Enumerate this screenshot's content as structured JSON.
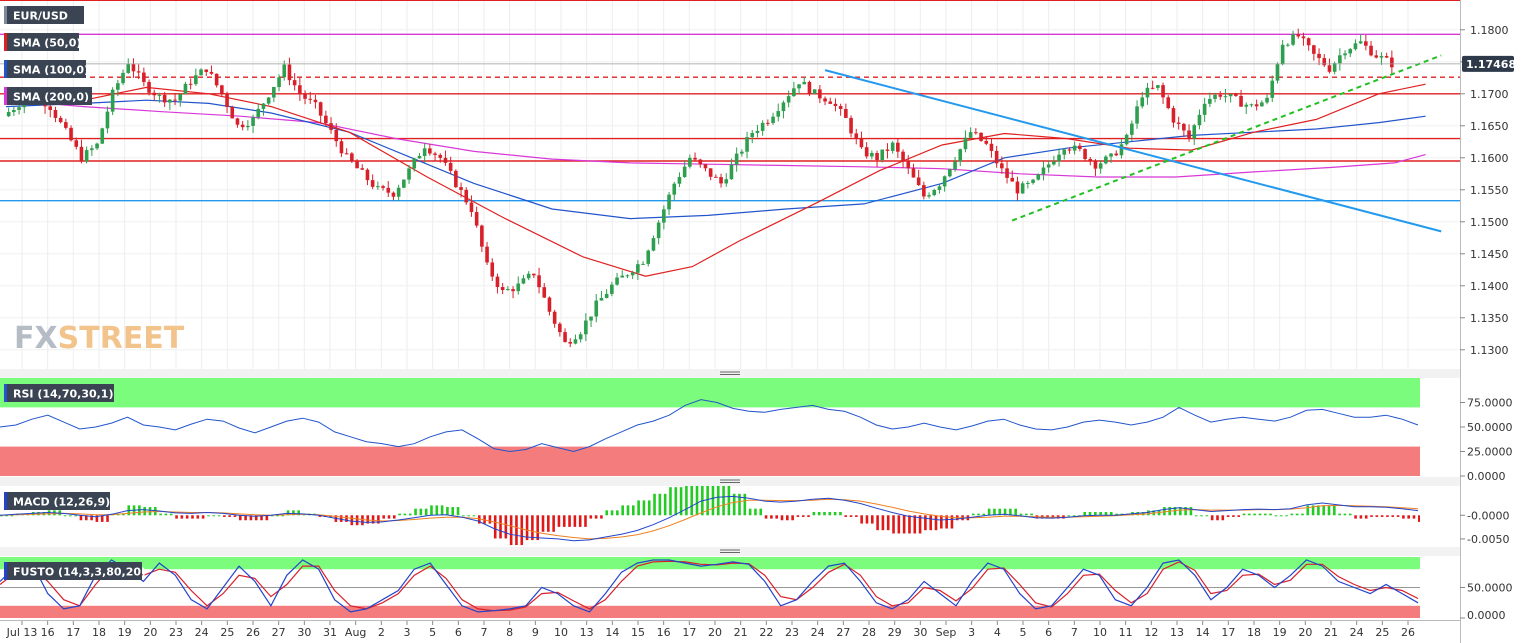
{
  "symbol": "EUR/USD",
  "watermark": {
    "fx": "FX",
    "street": "STREET"
  },
  "indicators": {
    "sma50": "SMA (50,0)",
    "sma100": "SMA (100,0)",
    "sma200": "SMA (200,0)",
    "rsi": "RSI (14,70,30,1)",
    "macd": "MACD (12,26,9)",
    "fusto": "FUSTO (14,3,3,80,20)"
  },
  "colors": {
    "up": "#2e9e4f",
    "down": "#d8202a",
    "sma50": "#e02020",
    "sma100": "#2255cc",
    "sma200": "#d838d8",
    "trend": "#2299ee",
    "support": "#22c022",
    "overbought": "#7cfc7c",
    "oversold": "#f47c7c"
  },
  "chart_data": [
    {
      "type": "candlestick",
      "pane": "price",
      "ylim": [
        1.127,
        1.1845
      ],
      "y_ticks": [
        "1.1800",
        "1.1750",
        "1.1700",
        "1.1650",
        "1.1600",
        "1.1550",
        "1.1500",
        "1.1450",
        "1.1400",
        "1.1350",
        "1.1300"
      ],
      "x_labels": [
        "Jul 13",
        "16",
        "17",
        "18",
        "19",
        "20",
        "23",
        "24",
        "25",
        "26",
        "27",
        "30",
        "31",
        "Aug",
        "2",
        "3",
        "5",
        "6",
        "7",
        "8",
        "9",
        "10",
        "13",
        "14",
        "15",
        "16",
        "17",
        "20",
        "21",
        "22",
        "23",
        "24",
        "27",
        "28",
        "29",
        "30",
        "Sep",
        "3",
        "4",
        "5",
        "6",
        "7",
        "10",
        "11",
        "12",
        "13",
        "14",
        "17",
        "18",
        "19",
        "20",
        "21",
        "24",
        "25",
        "26"
      ],
      "last_price": "1.17468",
      "close_path": [
        1.1665,
        1.1685,
        1.17,
        1.168,
        1.164,
        1.16,
        1.162,
        1.17,
        1.175,
        1.1715,
        1.1695,
        1.169,
        1.172,
        1.174,
        1.17,
        1.165,
        1.166,
        1.17,
        1.174,
        1.17,
        1.168,
        1.164,
        1.16,
        1.1575,
        1.155,
        1.1545,
        1.158,
        1.162,
        1.16,
        1.156,
        1.152,
        1.143,
        1.139,
        1.14,
        1.142,
        1.136,
        1.131,
        1.133,
        1.137,
        1.14,
        1.142,
        1.144,
        1.15,
        1.156,
        1.16,
        1.158,
        1.156,
        1.16,
        1.164,
        1.166,
        1.169,
        1.172,
        1.17,
        1.169,
        1.166,
        1.161,
        1.16,
        1.162,
        1.158,
        1.154,
        1.156,
        1.16,
        1.164,
        1.162,
        1.158,
        1.155,
        1.156,
        1.159,
        1.162,
        1.161,
        1.159,
        1.16,
        1.163,
        1.17,
        1.171,
        1.166,
        1.163,
        1.169,
        1.17,
        1.169,
        1.168,
        1.169,
        1.178,
        1.179,
        1.176,
        1.174,
        1.177,
        1.178,
        1.176,
        1.1747
      ],
      "sma50": [
        [
          0,
          1.17
        ],
        [
          5,
          1.169
        ],
        [
          9,
          1.171
        ],
        [
          13,
          1.17
        ],
        [
          17,
          1.168
        ],
        [
          22,
          1.164
        ],
        [
          27,
          1.157
        ],
        [
          32,
          1.1505
        ],
        [
          37,
          1.1445
        ],
        [
          41,
          1.1415
        ],
        [
          44,
          1.143
        ],
        [
          47,
          1.147
        ],
        [
          52,
          1.153
        ],
        [
          56,
          1.158
        ],
        [
          60,
          1.162
        ],
        [
          64,
          1.1638
        ],
        [
          68,
          1.163
        ],
        [
          72,
          1.1615
        ],
        [
          76,
          1.1612
        ],
        [
          80,
          1.164
        ],
        [
          84,
          1.166
        ],
        [
          88,
          1.17
        ],
        [
          91,
          1.1715
        ]
      ],
      "sma100": [
        [
          0,
          1.168
        ],
        [
          5,
          1.1685
        ],
        [
          9,
          1.169
        ],
        [
          13,
          1.1685
        ],
        [
          17,
          1.167
        ],
        [
          22,
          1.164
        ],
        [
          26,
          1.16
        ],
        [
          30,
          1.156
        ],
        [
          35,
          1.152
        ],
        [
          40,
          1.1505
        ],
        [
          45,
          1.151
        ],
        [
          50,
          1.152
        ],
        [
          55,
          1.1528
        ],
        [
          60,
          1.156
        ],
        [
          64,
          1.16
        ],
        [
          68,
          1.1615
        ],
        [
          72,
          1.1625
        ],
        [
          76,
          1.1635
        ],
        [
          80,
          1.164
        ],
        [
          84,
          1.1645
        ],
        [
          88,
          1.1655
        ],
        [
          91,
          1.1665
        ]
      ],
      "sma200": [
        [
          0,
          1.169
        ],
        [
          5,
          1.168
        ],
        [
          10,
          1.1672
        ],
        [
          15,
          1.1665
        ],
        [
          20,
          1.1655
        ],
        [
          25,
          1.163
        ],
        [
          30,
          1.161
        ],
        [
          35,
          1.1598
        ],
        [
          40,
          1.1592
        ],
        [
          45,
          1.159
        ],
        [
          50,
          1.1588
        ],
        [
          55,
          1.1586
        ],
        [
          60,
          1.1583
        ],
        [
          65,
          1.1575
        ],
        [
          70,
          1.157
        ],
        [
          75,
          1.157
        ],
        [
          80,
          1.1578
        ],
        [
          85,
          1.1585
        ],
        [
          89,
          1.1592
        ],
        [
          91,
          1.1605
        ]
      ],
      "horizontal_levels": [
        {
          "y": 1.1793,
          "color": "#d838d8",
          "style": "solid"
        },
        {
          "y": 1.1726,
          "color": "#e02020",
          "style": "dashed"
        },
        {
          "y": 1.17,
          "color": "#e02020",
          "style": "solid"
        },
        {
          "y": 1.163,
          "color": "#e02020",
          "style": "solid"
        },
        {
          "y": 1.1595,
          "color": "#e02020",
          "style": "solid"
        },
        {
          "y": 1.1533,
          "color": "#2299ee",
          "style": "solid"
        }
      ],
      "trendlines": [
        {
          "from": [
            52.5,
            1.1737
          ],
          "to": [
            92,
            1.1485
          ],
          "color": "#2299ee",
          "style": "solid"
        },
        {
          "from": [
            64.5,
            1.1502
          ],
          "to": [
            92,
            1.176
          ],
          "color": "#22c022",
          "style": "dashed"
        }
      ]
    },
    {
      "type": "line",
      "pane": "rsi",
      "ylim": [
        0,
        100
      ],
      "y_ticks": [
        "75.0000",
        "50.0000",
        "25.0000",
        "0.0000"
      ],
      "overbought": 70,
      "oversold": 30,
      "values": [
        50,
        52,
        58,
        62,
        55,
        48,
        50,
        54,
        60,
        52,
        50,
        47,
        53,
        58,
        56,
        49,
        44,
        50,
        56,
        59,
        55,
        45,
        40,
        35,
        33,
        30,
        33,
        40,
        45,
        47,
        38,
        28,
        25,
        27,
        33,
        29,
        25,
        30,
        38,
        45,
        52,
        56,
        62,
        72,
        78,
        75,
        69,
        66,
        65,
        68,
        70,
        72,
        68,
        66,
        60,
        52,
        48,
        50,
        54,
        50,
        47,
        51,
        56,
        58,
        52,
        48,
        47,
        50,
        55,
        57,
        55,
        52,
        55,
        60,
        70,
        62,
        55,
        58,
        60,
        58,
        56,
        60,
        67,
        68,
        64,
        60,
        60,
        62,
        58,
        52
      ]
    },
    {
      "type": "histogram+line",
      "pane": "macd",
      "ylim": [
        -0.0065,
        0.0062
      ],
      "y_ticks": [
        "-0.0000",
        "-0.0050"
      ],
      "macd": [
        0.0,
        0.0002,
        0.0004,
        0.0006,
        0.0004,
        0.0,
        -0.0003,
        0.0002,
        0.001,
        0.0012,
        0.0009,
        0.0005,
        0.0004,
        0.0006,
        0.0004,
        0.0,
        -0.0002,
        0.0,
        0.0004,
        0.0003,
        0.0,
        -0.0006,
        -0.0012,
        -0.0015,
        -0.0014,
        -0.001,
        -0.0005,
        0.0,
        0.0001,
        -0.0004,
        -0.0012,
        -0.0028,
        -0.004,
        -0.0046,
        -0.0048,
        -0.005,
        -0.0054,
        -0.0052,
        -0.0046,
        -0.004,
        -0.0032,
        -0.002,
        -0.0005,
        0.0012,
        0.003,
        0.0038,
        0.004,
        0.0036,
        0.003,
        0.0028,
        0.003,
        0.0034,
        0.0036,
        0.0032,
        0.0025,
        0.0015,
        0.0006,
        -0.0002,
        -0.0006,
        -0.001,
        -0.0008,
        -0.0004,
        0.0,
        0.0002,
        -0.0001,
        -0.0005,
        -0.0006,
        -0.0004,
        -0.0001,
        0.0,
        0.0,
        0.0003,
        0.0006,
        0.0012,
        0.0016,
        0.0012,
        0.0008,
        0.001,
        0.0012,
        0.0013,
        0.0012,
        0.0014,
        0.0022,
        0.0026,
        0.0022,
        0.0018,
        0.0018,
        0.0017,
        0.0014,
        0.001
      ],
      "signal": [
        0.0,
        0.0001,
        0.0002,
        0.0003,
        0.0004,
        0.0003,
        0.0001,
        0.0001,
        0.0004,
        0.0007,
        0.0008,
        0.0007,
        0.0006,
        0.0006,
        0.0005,
        0.0003,
        0.0001,
        0.0,
        0.0001,
        0.0002,
        0.0001,
        -0.0002,
        -0.0006,
        -0.001,
        -0.0012,
        -0.0011,
        -0.0009,
        -0.0006,
        -0.0004,
        -0.0004,
        -0.0007,
        -0.0014,
        -0.0022,
        -0.0031,
        -0.0038,
        -0.0043,
        -0.0047,
        -0.005,
        -0.0049,
        -0.0046,
        -0.0041,
        -0.0033,
        -0.0022,
        -0.0009,
        0.0005,
        0.0018,
        0.0027,
        0.0032,
        0.0032,
        0.0031,
        0.0031,
        0.0032,
        0.0034,
        0.0033,
        0.003,
        0.0024,
        0.0017,
        0.0009,
        0.0003,
        -0.0002,
        -0.0005,
        -0.0005,
        -0.0004,
        -0.0002,
        -0.0002,
        -0.0003,
        -0.0004,
        -0.0004,
        -0.0003,
        -0.0002,
        -0.0001,
        0.0001,
        0.0003,
        0.0007,
        0.0011,
        0.0012,
        0.0011,
        0.0011,
        0.0011,
        0.0012,
        0.0012,
        0.0013,
        0.0016,
        0.002,
        0.0021,
        0.002,
        0.0019,
        0.0018,
        0.0016,
        0.0014
      ]
    },
    {
      "type": "line",
      "pane": "fusto",
      "ylim": [
        0,
        100
      ],
      "y_ticks": [
        "50.0000",
        "0.0000"
      ],
      "overbought": 80,
      "oversold": 20,
      "k": [
        60,
        85,
        90,
        40,
        15,
        20,
        70,
        95,
        80,
        60,
        90,
        70,
        30,
        15,
        50,
        85,
        60,
        20,
        70,
        95,
        80,
        30,
        10,
        15,
        30,
        45,
        80,
        90,
        55,
        20,
        10,
        12,
        15,
        20,
        50,
        40,
        20,
        10,
        40,
        75,
        90,
        95,
        95,
        90,
        85,
        88,
        92,
        88,
        60,
        20,
        30,
        60,
        85,
        90,
        60,
        25,
        15,
        30,
        60,
        40,
        20,
        60,
        90,
        80,
        40,
        15,
        20,
        50,
        80,
        70,
        30,
        20,
        50,
        90,
        95,
        70,
        30,
        50,
        80,
        70,
        50,
        70,
        95,
        85,
        60,
        50,
        40,
        55,
        40,
        25
      ],
      "d": [
        55,
        75,
        85,
        60,
        30,
        20,
        55,
        85,
        85,
        70,
        80,
        75,
        45,
        20,
        40,
        70,
        65,
        35,
        55,
        85,
        85,
        45,
        20,
        15,
        25,
        40,
        70,
        85,
        65,
        30,
        15,
        12,
        13,
        18,
        40,
        42,
        28,
        15,
        30,
        60,
        85,
        92,
        93,
        92,
        88,
        87,
        90,
        89,
        70,
        35,
        30,
        50,
        75,
        88,
        70,
        35,
        20,
        25,
        50,
        45,
        28,
        48,
        80,
        82,
        55,
        25,
        18,
        40,
        70,
        72,
        45,
        25,
        40,
        80,
        92,
        78,
        40,
        45,
        70,
        72,
        55,
        62,
        88,
        88,
        68,
        55,
        45,
        50,
        45,
        32
      ]
    }
  ]
}
